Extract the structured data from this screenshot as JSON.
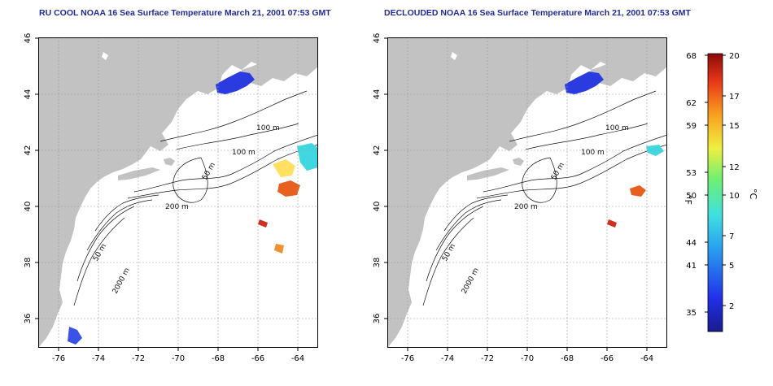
{
  "panels": [
    {
      "title": "RU COOL NOAA 16 Sea Surface Temperature March 21, 2001 07:53 GMT"
    },
    {
      "title": "DECLOUDED NOAA 16 Sea Surface Temperature March 21, 2001 07:53 GMT"
    }
  ],
  "axes": {
    "lon_ticks": [
      "-76",
      "-74",
      "-72",
      "-70",
      "-68",
      "-66",
      "-64"
    ],
    "lat_ticks": [
      "36",
      "38",
      "40",
      "42",
      "44",
      "46"
    ]
  },
  "contours": [
    {
      "label": "100 m"
    },
    {
      "label": "100 m"
    },
    {
      "label": "50 m"
    },
    {
      "label": "200 m"
    },
    {
      "label": "50 m"
    },
    {
      "label": "2000 m"
    }
  ],
  "colorbar": {
    "unit_f": "°F",
    "unit_c": "°C",
    "f_ticks": [
      "68",
      "62",
      "59",
      "53",
      "50",
      "44",
      "41",
      "35"
    ],
    "c_ticks": [
      "20",
      "17",
      "15",
      "12",
      "10",
      "7",
      "5",
      "2"
    ]
  },
  "colors": {
    "land": "#c2c2c2",
    "title": "#1f2a9a",
    "grid": "#9a9a9a"
  }
}
